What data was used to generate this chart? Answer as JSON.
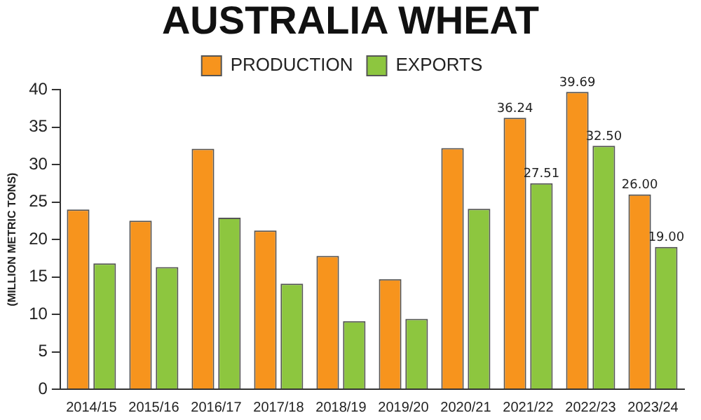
{
  "chart_data": {
    "type": "bar",
    "title": "AUSTRALIA WHEAT",
    "ylabel": "(MILLION METRIC TONS)",
    "categories": [
      "2014/15",
      "2015/16",
      "2016/17",
      "2017/18",
      "2018/19",
      "2019/20",
      "2020/21",
      "2021/22",
      "2022/23",
      "2023/24"
    ],
    "series": [
      {
        "name": "PRODUCTION",
        "color": "#f7941d",
        "values": [
          24.0,
          22.5,
          32.1,
          21.2,
          17.8,
          14.7,
          32.2,
          36.24,
          39.69,
          26.0
        ],
        "value_labels": [
          null,
          null,
          null,
          null,
          null,
          null,
          null,
          "36.24",
          "39.69",
          "26.00"
        ]
      },
      {
        "name": "EXPORTS",
        "color": "#8dc63f",
        "values": [
          16.8,
          16.3,
          22.9,
          14.1,
          9.1,
          9.4,
          24.1,
          27.51,
          32.5,
          19.0
        ],
        "value_labels": [
          null,
          null,
          null,
          null,
          null,
          null,
          null,
          "27.51",
          "32.50",
          "19.00"
        ]
      }
    ],
    "ylim": [
      0,
      40
    ],
    "yticks": [
      0,
      5,
      10,
      15,
      20,
      25,
      30,
      35,
      40
    ],
    "grid": false,
    "legend": "top"
  }
}
